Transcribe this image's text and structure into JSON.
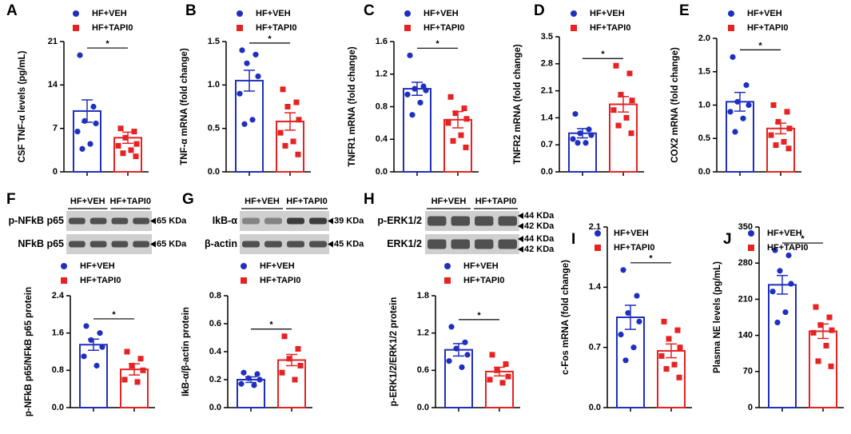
{
  "chart_data": [
    {
      "type": "bar",
      "panel": "A",
      "ylabel": "CSF TNF-α levels (pg/mL)",
      "ylim": [
        0,
        21
      ],
      "yticks": [
        0,
        7,
        14,
        21
      ],
      "annotation": "*",
      "series": [
        {
          "name": "HF+VEH",
          "color": "#1f2fbf",
          "values": [
            9.8
          ],
          "errors": [
            1.8
          ],
          "points": [
            18.8,
            10.5,
            8.2,
            7.8,
            6.5,
            4.5,
            3.7
          ]
        },
        {
          "name": "HF+TAPI0",
          "color": "#e62222",
          "values": [
            5.5
          ],
          "errors": [
            0.9
          ],
          "points": [
            7.0,
            6.5,
            5.5,
            4.5,
            4.2,
            3.5,
            3.0,
            2.5
          ]
        }
      ]
    },
    {
      "type": "bar",
      "panel": "B",
      "ylabel": "TNF-α mRNA (fold change)",
      "ylim": [
        0,
        1.5
      ],
      "yticks": [
        {
          "value": 0,
          "label": "0.0"
        },
        0.5,
        {
          "value": 1,
          "label": "1.0"
        },
        1.5
      ],
      "annotation": "*",
      "series": [
        {
          "name": "HF+VEH",
          "color": "#1f2fbf",
          "values": [
            1.05
          ],
          "errors": [
            0.12
          ],
          "points": [
            1.4,
            1.35,
            1.25,
            1.1,
            0.9,
            0.6,
            0.55
          ]
        },
        {
          "name": "HF+TAPI0",
          "color": "#e62222",
          "values": [
            0.58
          ],
          "errors": [
            0.1
          ],
          "points": [
            0.95,
            0.8,
            0.75,
            0.6,
            0.45,
            0.35,
            0.3,
            0.2
          ]
        }
      ]
    },
    {
      "type": "bar",
      "panel": "C",
      "ylabel": "TNFR1 mRNA (fold change)",
      "ylim": [
        0,
        1.6
      ],
      "yticks": [
        {
          "value": 0,
          "label": "0.0"
        },
        0.4,
        0.8,
        1.2,
        1.6
      ],
      "annotation": "*",
      "series": [
        {
          "name": "HF+VEH",
          "color": "#1f2fbf",
          "values": [
            1.02
          ],
          "errors": [
            0.08
          ],
          "points": [
            1.43,
            1.05,
            1.02,
            1.0,
            0.95,
            0.85,
            0.7
          ]
        },
        {
          "name": "HF+TAPI0",
          "color": "#e62222",
          "values": [
            0.64
          ],
          "errors": [
            0.1
          ],
          "points": [
            0.92,
            0.78,
            0.72,
            0.65,
            0.6,
            0.45,
            0.38,
            0.3
          ]
        }
      ]
    },
    {
      "type": "bar",
      "panel": "D",
      "ylabel": "TNFR2 mRNA (fold change)",
      "ylim": [
        0,
        3.5
      ],
      "yticks": [
        {
          "value": 0,
          "label": "0.0"
        },
        0.7,
        1.4,
        2.1,
        2.8,
        3.5
      ],
      "annotation": "*",
      "series": [
        {
          "name": "HF+VEH",
          "color": "#1f2fbf",
          "values": [
            1.0
          ],
          "errors": [
            0.12
          ],
          "points": [
            1.5,
            1.1,
            1.0,
            0.95,
            0.85,
            0.75,
            0.75
          ]
        },
        {
          "name": "HF+TAPI0",
          "color": "#e62222",
          "values": [
            1.75
          ],
          "errors": [
            0.2
          ],
          "points": [
            2.75,
            2.55,
            2.0,
            1.85,
            1.6,
            1.4,
            1.2,
            1.0
          ]
        }
      ]
    },
    {
      "type": "bar",
      "panel": "E",
      "ylabel": "COX2 mRNA (fold change)",
      "ylim": [
        0,
        2
      ],
      "yticks": [
        {
          "value": 0,
          "label": "0.0"
        },
        0.5,
        {
          "value": 1,
          "label": "1.0"
        },
        1.5,
        {
          "value": 2,
          "label": "2.0"
        }
      ],
      "annotation": "*",
      "series": [
        {
          "name": "HF+VEH",
          "color": "#1f2fbf",
          "values": [
            1.05
          ],
          "errors": [
            0.14
          ],
          "points": [
            1.72,
            1.3,
            1.05,
            1.0,
            0.9,
            0.8,
            0.6
          ]
        },
        {
          "name": "HF+TAPI0",
          "color": "#e62222",
          "values": [
            0.65
          ],
          "errors": [
            0.08
          ],
          "points": [
            1.0,
            0.9,
            0.75,
            0.65,
            0.55,
            0.45,
            0.4,
            0.35
          ]
        }
      ]
    },
    {
      "type": "bar",
      "ylabel": "p-NFkB p65/NFkB p65 protein",
      "ylim": [
        0,
        2.4
      ],
      "yticks": [
        {
          "value": 0,
          "label": "0.0"
        },
        0.8,
        1.6,
        2.4
      ],
      "annotation": "*",
      "series": [
        {
          "name": "HF+VEH",
          "color": "#1f2fbf",
          "values": [
            1.35
          ],
          "errors": [
            0.12
          ],
          "points": [
            1.75,
            1.6,
            1.45,
            1.3,
            1.1,
            0.9
          ]
        },
        {
          "name": "HF+TAPI0",
          "color": "#e62222",
          "values": [
            0.82
          ],
          "errors": [
            0.12
          ],
          "points": [
            1.2,
            1.05,
            0.9,
            0.8,
            0.6,
            0.55
          ]
        }
      ]
    },
    {
      "type": "bar",
      "ylabel": "IkB-α/β-actin protein",
      "ylim": [
        0,
        0.8
      ],
      "yticks": [
        {
          "value": 0,
          "label": "0.0"
        },
        0.2,
        0.4,
        0.6,
        0.8
      ],
      "annotation": "*",
      "series": [
        {
          "name": "HF+VEH",
          "color": "#1f2fbf",
          "values": [
            0.2
          ],
          "errors": [
            0.02
          ],
          "points": [
            0.25,
            0.24,
            0.21,
            0.2,
            0.17,
            0.16
          ]
        },
        {
          "name": "HF+TAPI0",
          "color": "#e62222",
          "values": [
            0.34
          ],
          "errors": [
            0.04
          ],
          "points": [
            0.51,
            0.42,
            0.35,
            0.3,
            0.25,
            0.2
          ]
        }
      ]
    },
    {
      "type": "bar",
      "ylabel": "p-ERK1/2/ERK1/2 protein",
      "ylim": [
        0,
        1.8
      ],
      "yticks": [
        {
          "value": 0,
          "label": "0.0"
        },
        0.6,
        1.2,
        1.8
      ],
      "annotation": "*",
      "series": [
        {
          "name": "HF+VEH",
          "color": "#1f2fbf",
          "values": [
            0.93
          ],
          "errors": [
            0.1
          ],
          "points": [
            1.3,
            1.05,
            0.95,
            0.85,
            0.75,
            0.65
          ]
        },
        {
          "name": "HF+TAPI0",
          "color": "#e62222",
          "values": [
            0.58
          ],
          "errors": [
            0.07
          ],
          "points": [
            0.85,
            0.7,
            0.6,
            0.5,
            0.45,
            0.4
          ]
        }
      ]
    },
    {
      "type": "bar",
      "panel": "I",
      "ylabel": "c-Fos mRNA (fold change)",
      "ylim": [
        0,
        2.1
      ],
      "yticks": [
        {
          "value": 0,
          "label": "0.0"
        },
        0.7,
        1.4,
        2.1
      ],
      "annotation": "*",
      "series": [
        {
          "name": "HF+VEH",
          "color": "#1f2fbf",
          "values": [
            1.05
          ],
          "errors": [
            0.14
          ],
          "points": [
            1.6,
            1.3,
            1.1,
            1.0,
            0.85,
            0.7,
            0.55
          ]
        },
        {
          "name": "HF+TAPI0",
          "color": "#e62222",
          "values": [
            0.66
          ],
          "errors": [
            0.08
          ],
          "points": [
            1.0,
            0.9,
            0.8,
            0.7,
            0.6,
            0.5,
            0.45,
            0.35
          ]
        }
      ]
    },
    {
      "type": "bar",
      "panel": "J",
      "ylabel": "Plasma NE levels (pg/mL)",
      "ylim": [
        0,
        350
      ],
      "yticks": [
        0,
        70,
        140,
        210,
        280,
        350
      ],
      "annotation": "*",
      "series": [
        {
          "name": "HF+VEH",
          "color": "#1f2fbf",
          "values": [
            238
          ],
          "errors": [
            18
          ],
          "points": [
            305,
            295,
            265,
            240,
            225,
            185,
            165
          ]
        },
        {
          "name": "HF+TAPI0",
          "color": "#e62222",
          "values": [
            148
          ],
          "errors": [
            14
          ],
          "points": [
            195,
            175,
            160,
            150,
            145,
            120,
            90,
            80
          ]
        }
      ]
    }
  ],
  "blots": [
    {
      "panel": "F",
      "groups": [
        "HF+VEH",
        "HF+TAPI0"
      ],
      "rows": [
        {
          "label": "p-NFkB p65",
          "markers": [
            "65 KDa"
          ]
        },
        {
          "label": "NFkB p65",
          "markers": [
            "65 KDa"
          ]
        }
      ]
    },
    {
      "panel": "G",
      "groups": [
        "HF+VEH",
        "HF+TAPI0"
      ],
      "rows": [
        {
          "label": "IkB-α",
          "markers": [
            "39 KDa"
          ]
        },
        {
          "label": "β-actin",
          "markers": [
            "45 KDa"
          ]
        }
      ]
    },
    {
      "panel": "H",
      "groups": [
        "HF+VEH",
        "HF+TAPI0"
      ],
      "rows": [
        {
          "label": "p-ERK1/2",
          "markers": [
            "44 KDa",
            "42 KDa"
          ]
        },
        {
          "label": "ERK1/2",
          "markers": [
            "44 KDa",
            "42 KDa"
          ]
        }
      ]
    }
  ]
}
